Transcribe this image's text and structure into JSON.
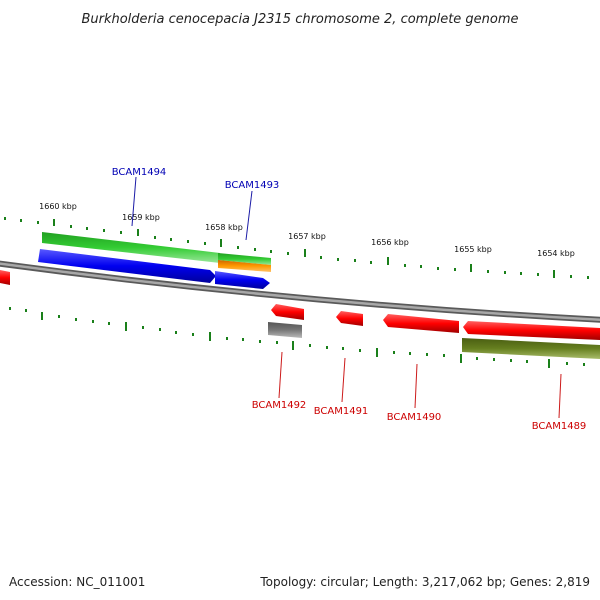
{
  "title": "Burkholderia cenocepacia J2315 chromosome 2, complete genome",
  "footer": {
    "accession": "Accession: NC_011001",
    "summary": "Topology: circular; Length: 3,217,062 bp; Genes: 2,819"
  },
  "ticks": [
    "1660 kbp",
    "1659 kbp",
    "1658 kbp",
    "1657 kbp",
    "1656 kbp",
    "1655 kbp",
    "1654 kbp"
  ],
  "genes": {
    "forward": [
      {
        "label": "BCAM1494",
        "color": "#0000b4"
      },
      {
        "label": "BCAM1493",
        "color": "#0000b4"
      }
    ],
    "reverse": [
      {
        "label": "BCAM1492",
        "color": "#cc0000"
      },
      {
        "label": "BCAM1491",
        "color": "#cc0000"
      },
      {
        "label": "BCAM1490",
        "color": "#cc0000"
      },
      {
        "label": "BCAM1489",
        "color": "#cc0000"
      }
    ]
  },
  "colors": {
    "cds_forward": "#0000ff",
    "cds_reverse": "#ff0000",
    "gene_forward": "#33cc33",
    "gene_reverse": "#667f1f",
    "misc_feature": "#ff9900",
    "pseudo": "#777777",
    "backbone": "#808080",
    "tick_marks": "#1a801a"
  }
}
